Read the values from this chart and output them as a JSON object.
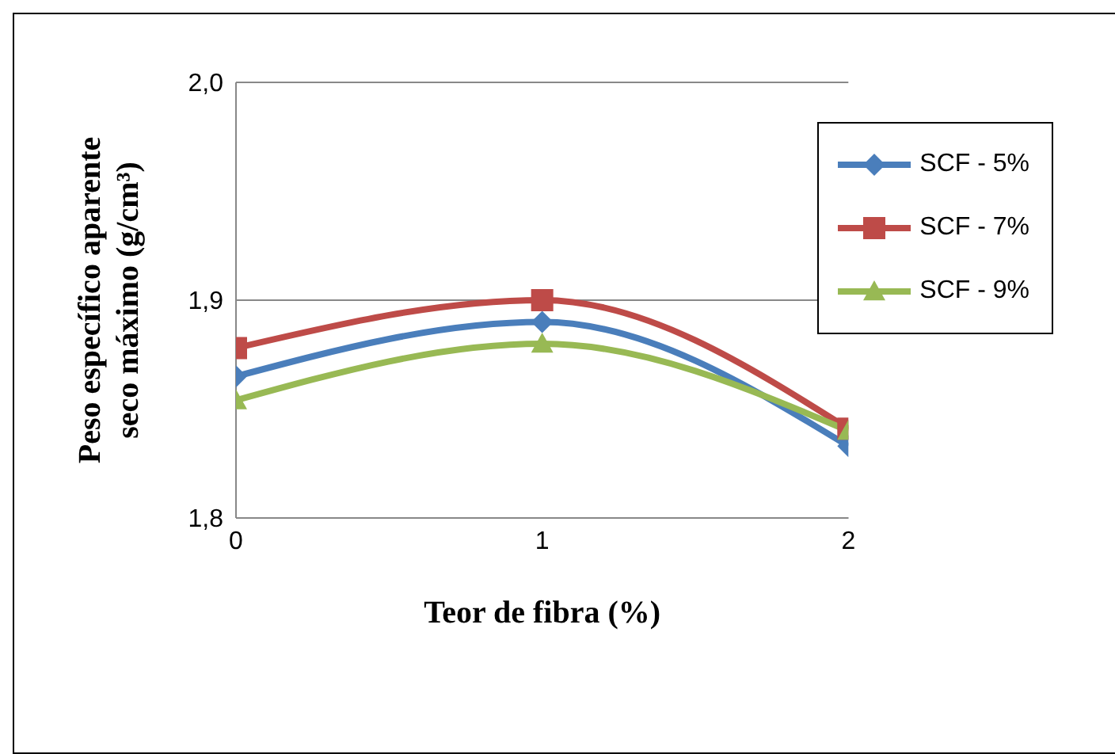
{
  "chart_data": {
    "type": "line",
    "xlabel": "Teor de fibra (%)",
    "ylabel": "Peso específico aparente seco máximo (g/cm³)",
    "x": [
      0,
      1,
      2
    ],
    "series": [
      {
        "name": "SCF - 5%",
        "color": "#4a7ebb",
        "marker": "diamond",
        "values": [
          1.865,
          1.89,
          1.833
        ]
      },
      {
        "name": "SCF - 7%",
        "color": "#be4b48",
        "marker": "square",
        "values": [
          1.878,
          1.9,
          1.841
        ]
      },
      {
        "name": "SCF - 9%",
        "color": "#98b954",
        "marker": "triangle",
        "values": [
          1.854,
          1.88,
          1.84
        ]
      }
    ],
    "xlim": [
      0,
      2
    ],
    "xticks": [
      0,
      1,
      2
    ],
    "ylim": [
      1.8,
      2.0
    ],
    "yticks": [
      {
        "value": 1.8,
        "label": "1,8"
      },
      {
        "value": 1.9,
        "label": "1,9"
      },
      {
        "value": 2.0,
        "label": "2,0"
      }
    ],
    "grid": "y",
    "legend": "top right"
  }
}
